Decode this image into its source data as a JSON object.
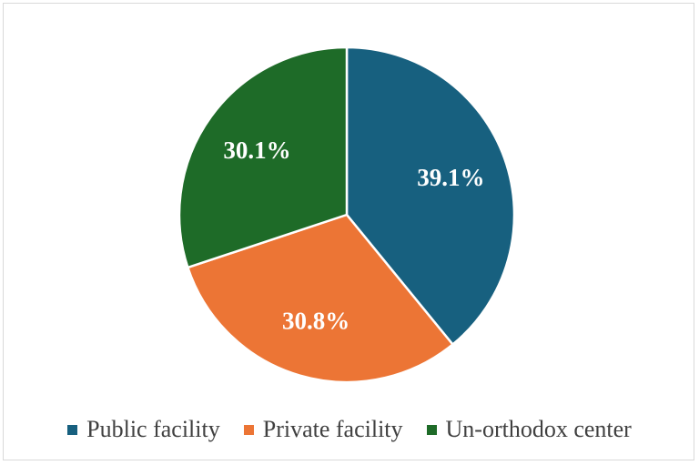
{
  "chart_data": {
    "type": "pie",
    "categories": [
      "Public facility",
      "Private facility",
      "Un-orthodox center"
    ],
    "values": [
      39.1,
      30.8,
      30.1
    ],
    "labels": [
      "39.1%",
      "30.8%",
      "30.1%"
    ],
    "colors": [
      "#17607f",
      "#ec7535",
      "#1e6b28"
    ],
    "start_angle_deg": 0,
    "direction": "clockwise",
    "legend": "bottom",
    "title": ""
  }
}
